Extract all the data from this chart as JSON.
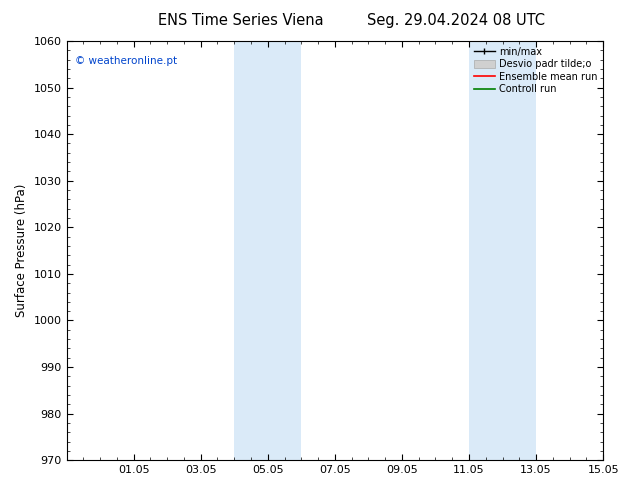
{
  "title_left": "ENS Time Series Viena",
  "title_right": "Seg. 29.04.2024 08 UTC",
  "ylabel": "Surface Pressure (hPa)",
  "ylim": [
    970,
    1060
  ],
  "yticks": [
    970,
    980,
    990,
    1000,
    1010,
    1020,
    1030,
    1040,
    1050,
    1060
  ],
  "xlim_start_day": 0,
  "xlim_end_day": 16,
  "xtick_positions": [
    2,
    4,
    6,
    8,
    10,
    12,
    14,
    16
  ],
  "xtick_labels": [
    "01.05",
    "03.05",
    "05.05",
    "07.05",
    "09.05",
    "11.05",
    "13.05",
    "15.05"
  ],
  "shaded_bands": [
    {
      "x_start": 5.0,
      "x_end": 7.0
    },
    {
      "x_start": 12.0,
      "x_end": 14.0
    }
  ],
  "shade_color": "#daeaf8",
  "background_color": "#ffffff",
  "plot_bg_color": "#ffffff",
  "watermark": "© weatheronline.pt",
  "watermark_color": "#0044cc",
  "legend_labels": [
    "min/max",
    "Desvio padr tilde;o",
    "Ensemble mean run",
    "Controll run"
  ],
  "legend_colors": [
    "#000000",
    "#c8c8c8",
    "#ff0000",
    "#008000"
  ],
  "title_fontsize": 10.5,
  "tick_fontsize": 8,
  "ylabel_fontsize": 8.5,
  "figsize": [
    6.34,
    4.9
  ],
  "dpi": 100
}
